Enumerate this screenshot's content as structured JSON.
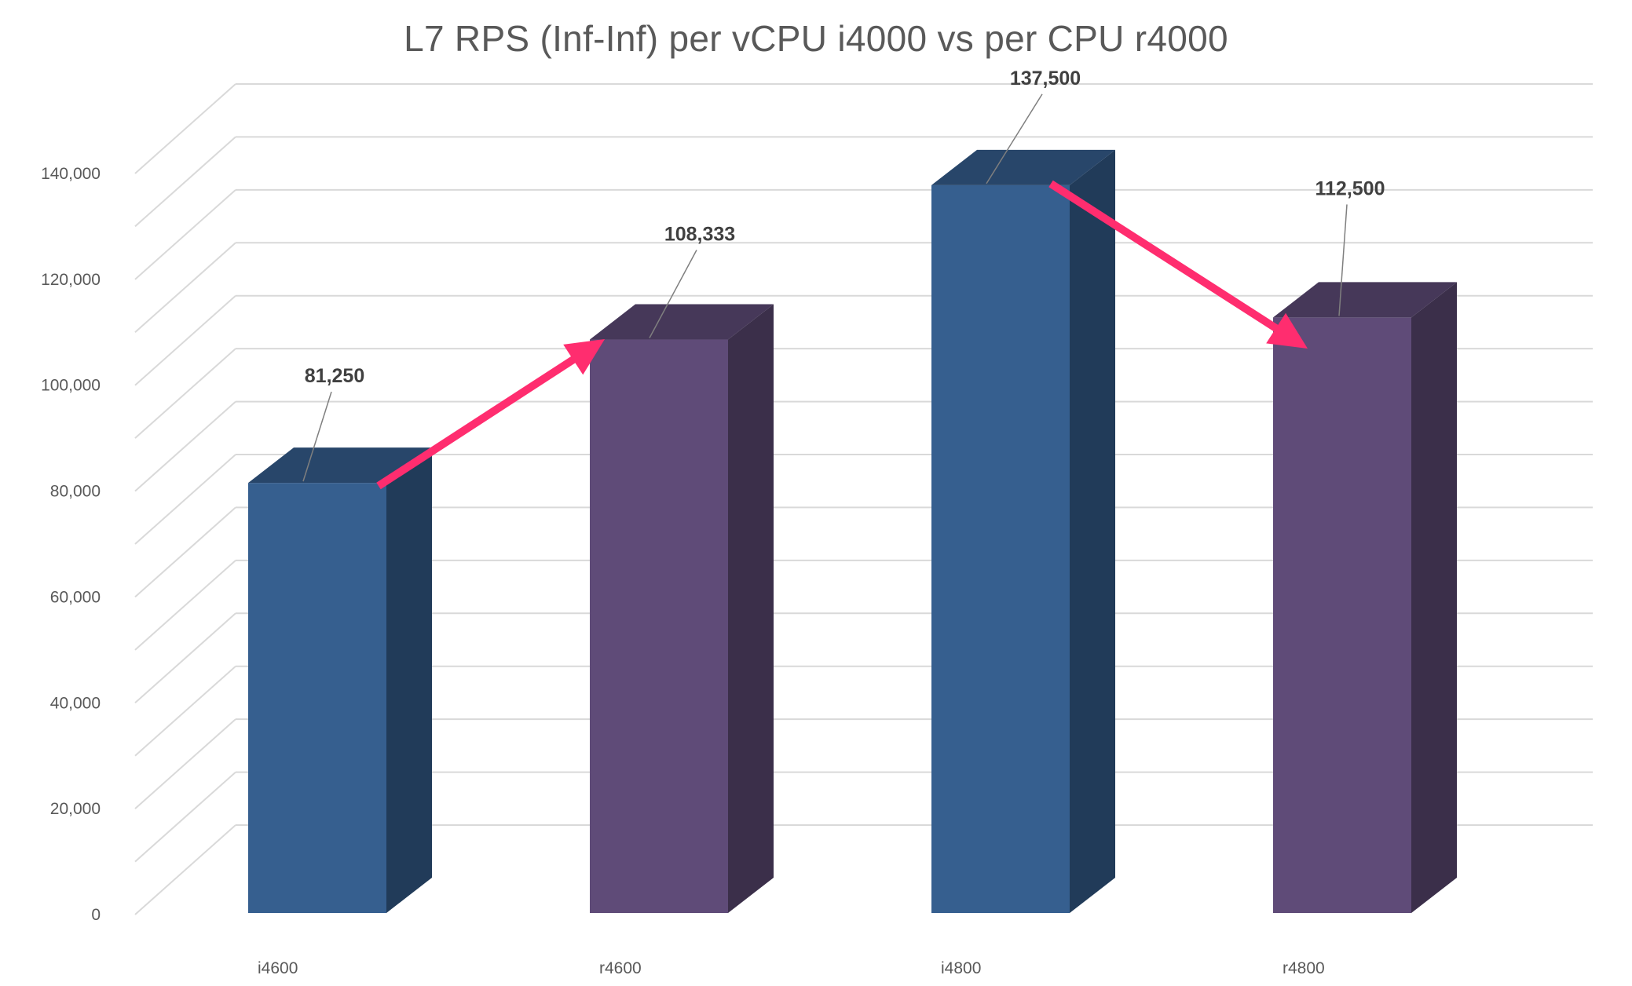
{
  "chart_data": {
    "type": "bar",
    "title": "L7 RPS (Inf-Inf) per vCPU i4000 vs per CPU r4000",
    "xlabel": "",
    "ylabel": "",
    "categories": [
      "i4600",
      "r4600",
      "i4800",
      "r4800"
    ],
    "values": [
      81250,
      108333,
      137500,
      112500
    ],
    "data_labels": [
      "81,250",
      "108,333",
      "137,500",
      "112,500"
    ],
    "ylim": [
      0,
      140000
    ],
    "yticks": [
      0,
      20000,
      40000,
      60000,
      80000,
      100000,
      120000,
      140000
    ],
    "ytick_labels": [
      "0",
      "20,000",
      "40,000",
      "60,000",
      "80,000",
      "100,000",
      "120,000",
      "140,000"
    ],
    "grid": true,
    "style": "3d-column",
    "bar_colors": [
      "#365F8F",
      "#5F4B78",
      "#365F8F",
      "#5F4B78"
    ],
    "annotations": [
      {
        "type": "arrow",
        "from": "i4600",
        "to": "r4600",
        "color": "#FF2D6F"
      },
      {
        "type": "arrow",
        "from": "i4800",
        "to": "r4800",
        "color": "#FF2D6F"
      }
    ]
  }
}
